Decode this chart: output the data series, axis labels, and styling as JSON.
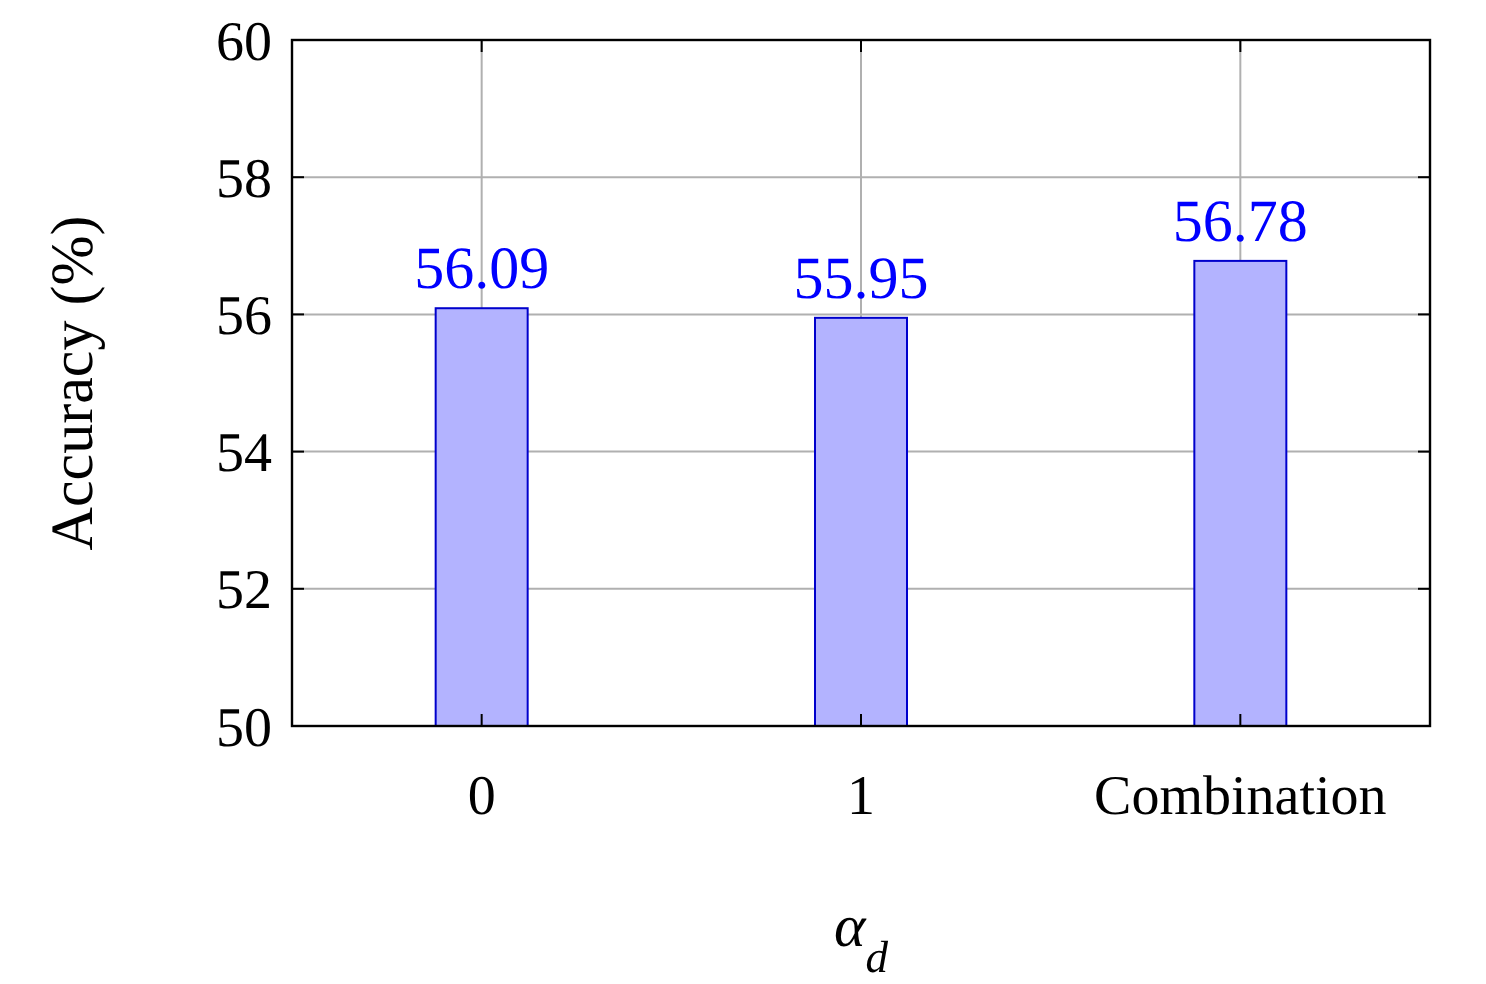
{
  "chart_data": {
    "type": "bar",
    "categories": [
      "0",
      "1",
      "Combination"
    ],
    "values": [
      56.09,
      55.95,
      56.78
    ],
    "color": "#b3b3ff",
    "xlabel": "α$_{d}$",
    "ylabel": "Accuracy (%)",
    "ylim": [
      50,
      60
    ],
    "yticks": [
      50,
      52,
      54,
      56,
      58,
      60
    ],
    "grid": true,
    "data_labels": true
  }
}
